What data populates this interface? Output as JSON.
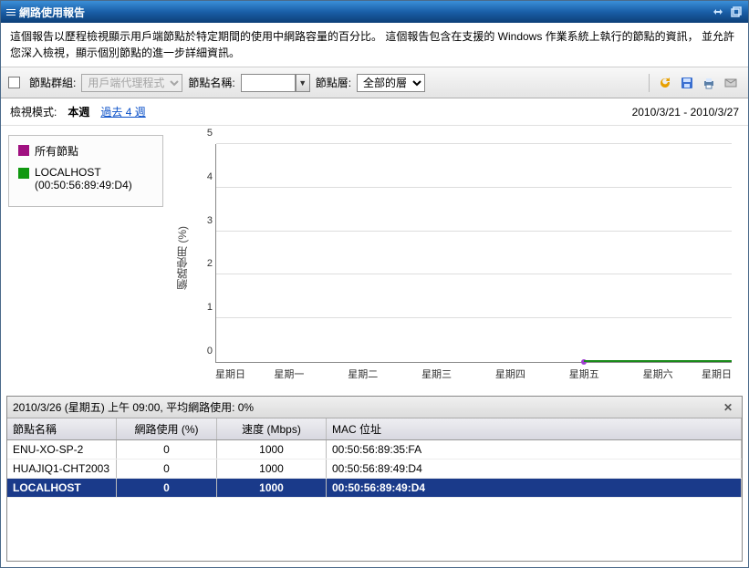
{
  "window": {
    "title": "網路使用報告",
    "description": "這個報告以歷程檢視顯示用戶端節點於特定期間的使用中網路容量的百分比。 這個報告包含在支援的 Windows 作業系統上執行的節點的資訊， 並允許您深入檢視，顯示個別節點的進一步詳細資訊。"
  },
  "toolbar": {
    "group_label": "節點群組:",
    "group_select": "用戶端代理程式",
    "node_label": "節點名稱:",
    "node_value": "",
    "tier_label": "節點層:",
    "tier_select": "全部的層",
    "icons": {
      "refresh": "refresh-icon",
      "save": "save-icon",
      "print": "print-icon",
      "email": "email-icon"
    }
  },
  "viewmode": {
    "label": "檢視模式:",
    "current": "本週",
    "link": "過去 4 週",
    "range": "2010/3/21 - 2010/3/27"
  },
  "legend": {
    "items": [
      {
        "label": "所有節點",
        "color": "#a01080"
      },
      {
        "label": "LOCALHOST (00:50:56:89:49:D4)",
        "color": "#109810"
      }
    ]
  },
  "chart": {
    "type": "line",
    "ylabel": "網路使用 (%)",
    "ylim": [
      0,
      5
    ],
    "ytick_step": 1,
    "yticks": [
      0,
      1,
      2,
      3,
      4,
      5
    ],
    "xlabels": [
      "星期日",
      "星期一",
      "星期二",
      "星期三",
      "星期四",
      "星期五",
      "星期六",
      "星期日"
    ],
    "grid_color": "#dddddd",
    "axis_color": "#888888",
    "background_color": "#ffffff",
    "series": [
      {
        "name": "所有節點",
        "color": "#a040d0",
        "marker_x_pct": 71.4
      },
      {
        "name": "LOCALHOST",
        "color": "#1a8a1a",
        "line_from_pct": 71.4,
        "line_to_pct": 100
      }
    ]
  },
  "detail": {
    "header": "2010/3/26 (星期五) 上午 09:00,  平均網路使用: 0%",
    "columns": {
      "name": "節點名稱",
      "usage": "網路使用 (%)",
      "speed": "速度 (Mbps)",
      "mac": "MAC 位址"
    },
    "rows": [
      {
        "name": "ENU-XO-SP-2",
        "usage": "0",
        "speed": "1000",
        "mac": "00:50:56:89:35:FA",
        "selected": false
      },
      {
        "name": "HUAJIQ1-CHT2003",
        "usage": "0",
        "speed": "1000",
        "mac": "00:50:56:89:49:D4",
        "selected": false
      },
      {
        "name": "LOCALHOST",
        "usage": "0",
        "speed": "1000",
        "mac": "00:50:56:89:49:D4",
        "selected": true
      }
    ]
  },
  "colors": {
    "titlebar_gradient": [
      "#3a8fd8",
      "#1a5fa8",
      "#0d3f78"
    ],
    "selected_row": "#1a3a8a"
  }
}
